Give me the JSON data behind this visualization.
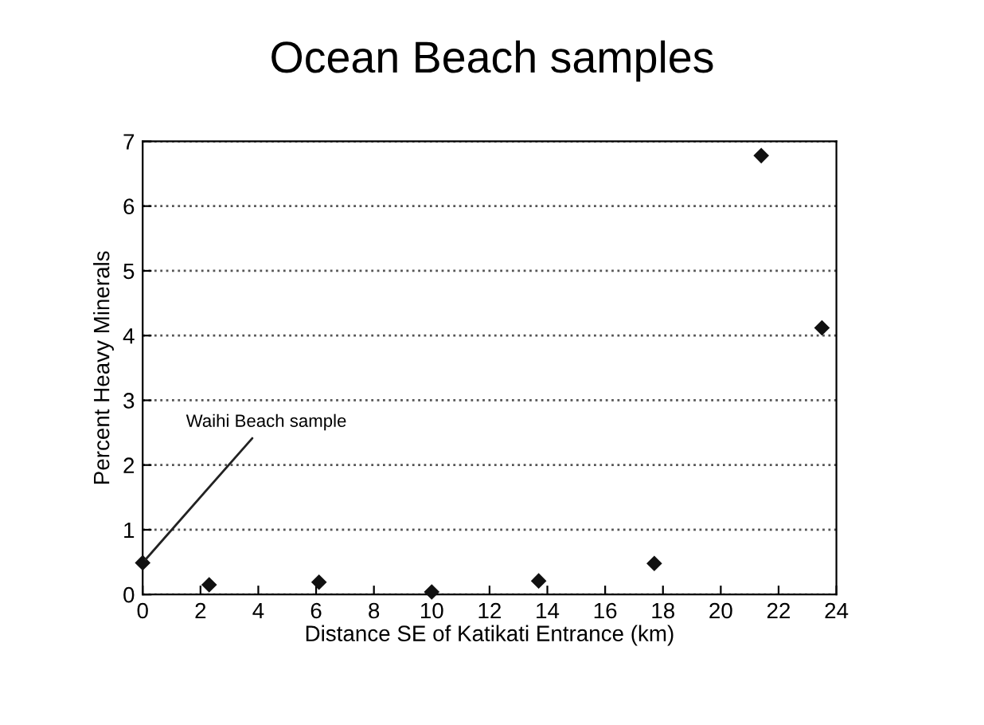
{
  "chart_data": {
    "type": "scatter",
    "title": "Ocean Beach samples",
    "xlabel": "Distance SE of Katikati Entrance (km)",
    "ylabel": "Percent Heavy Minerals",
    "x": [
      0,
      2.3,
      6.1,
      10.0,
      13.7,
      17.7,
      21.4,
      23.5
    ],
    "values": [
      0.49,
      0.15,
      0.19,
      0.04,
      0.21,
      0.48,
      6.78,
      4.12
    ],
    "color": "#111111",
    "marker": "diamond",
    "xlim": [
      0,
      24
    ],
    "xticks": [
      0,
      2,
      4,
      6,
      8,
      10,
      12,
      14,
      16,
      18,
      20,
      22,
      24
    ],
    "ylim": [
      0,
      7
    ],
    "yticks": [
      0,
      1,
      2,
      3,
      4,
      5,
      6,
      7
    ],
    "grid": "y",
    "annotations": [
      {
        "text": "Waihi Beach sample",
        "x": 0,
        "y": 0.49
      }
    ]
  }
}
